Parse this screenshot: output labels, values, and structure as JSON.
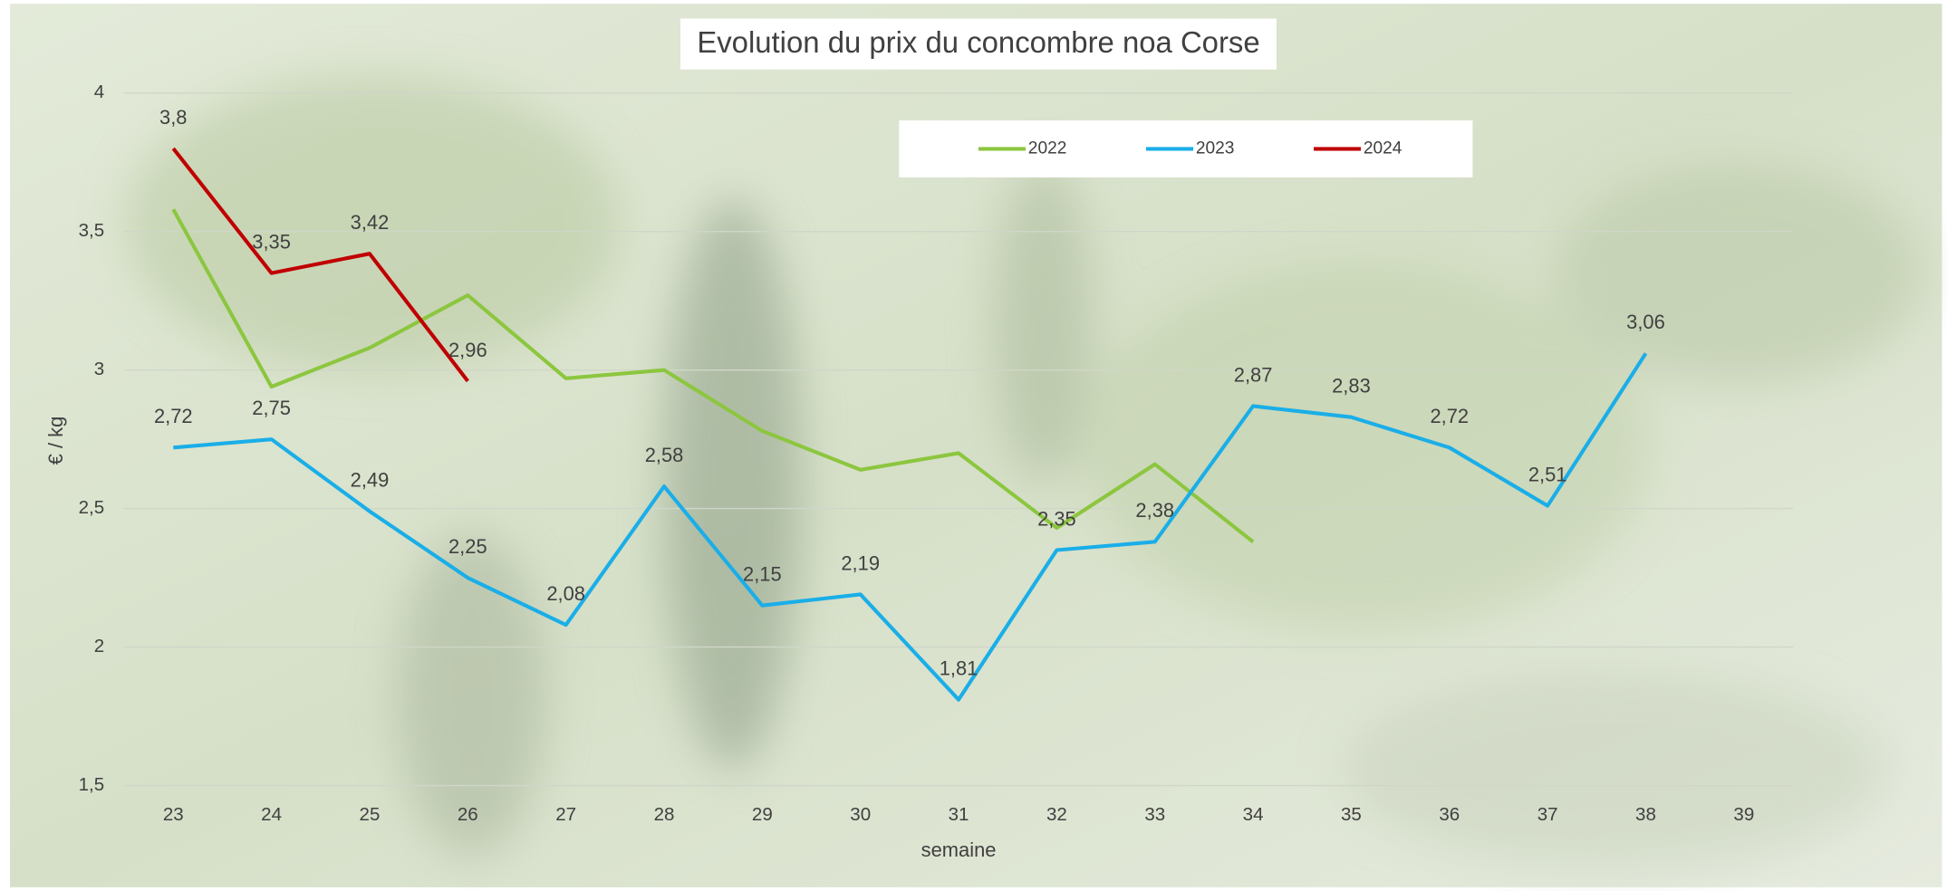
{
  "chart_data": {
    "type": "line",
    "title": "Evolution du prix du concombre noa Corse",
    "x_label": "semaine",
    "y_label": "€ / kg",
    "categories": [
      23,
      24,
      25,
      26,
      27,
      28,
      29,
      30,
      31,
      32,
      33,
      34,
      35,
      36,
      37,
      38,
      39
    ],
    "series": [
      {
        "name": "2022",
        "color": "#8cc63f",
        "values": [
          3.58,
          2.94,
          3.08,
          3.27,
          2.97,
          3.0,
          2.78,
          2.64,
          2.7,
          2.43,
          2.66,
          2.38,
          null,
          null,
          null,
          null,
          null
        ]
      },
      {
        "name": "2023",
        "color": "#1aaee8",
        "values": [
          2.72,
          2.75,
          2.49,
          2.25,
          2.08,
          2.58,
          2.15,
          2.19,
          1.81,
          2.35,
          2.38,
          2.87,
          2.83,
          2.72,
          2.51,
          3.06,
          null
        ],
        "value_labels": [
          "2,72",
          "2,75",
          "2,49",
          "2,25",
          "2,08",
          "2,58",
          "2,15",
          "2,19",
          "1,81",
          "2,35",
          "2,38",
          "2,87",
          "2,83",
          "2,72",
          "2,51",
          "3,06",
          null
        ]
      },
      {
        "name": "2024",
        "color": "#c00000",
        "values": [
          3.8,
          3.35,
          3.42,
          2.96,
          null,
          null,
          null,
          null,
          null,
          null,
          null,
          null,
          null,
          null,
          null,
          null,
          null
        ],
        "value_labels": [
          "3,8",
          "3,35",
          "3,42",
          "2,96",
          null,
          null,
          null,
          null,
          null,
          null,
          null,
          null,
          null,
          null,
          null,
          null,
          null
        ]
      }
    ],
    "ylim": [
      1.5,
      4
    ],
    "yticks": [
      {
        "value": 1.5,
        "label": "1,5"
      },
      2,
      {
        "value": 2.5,
        "label": "2,5"
      },
      3,
      {
        "value": 3.5,
        "label": "3,5"
      },
      4
    ],
    "grid": true,
    "legend": "top"
  }
}
